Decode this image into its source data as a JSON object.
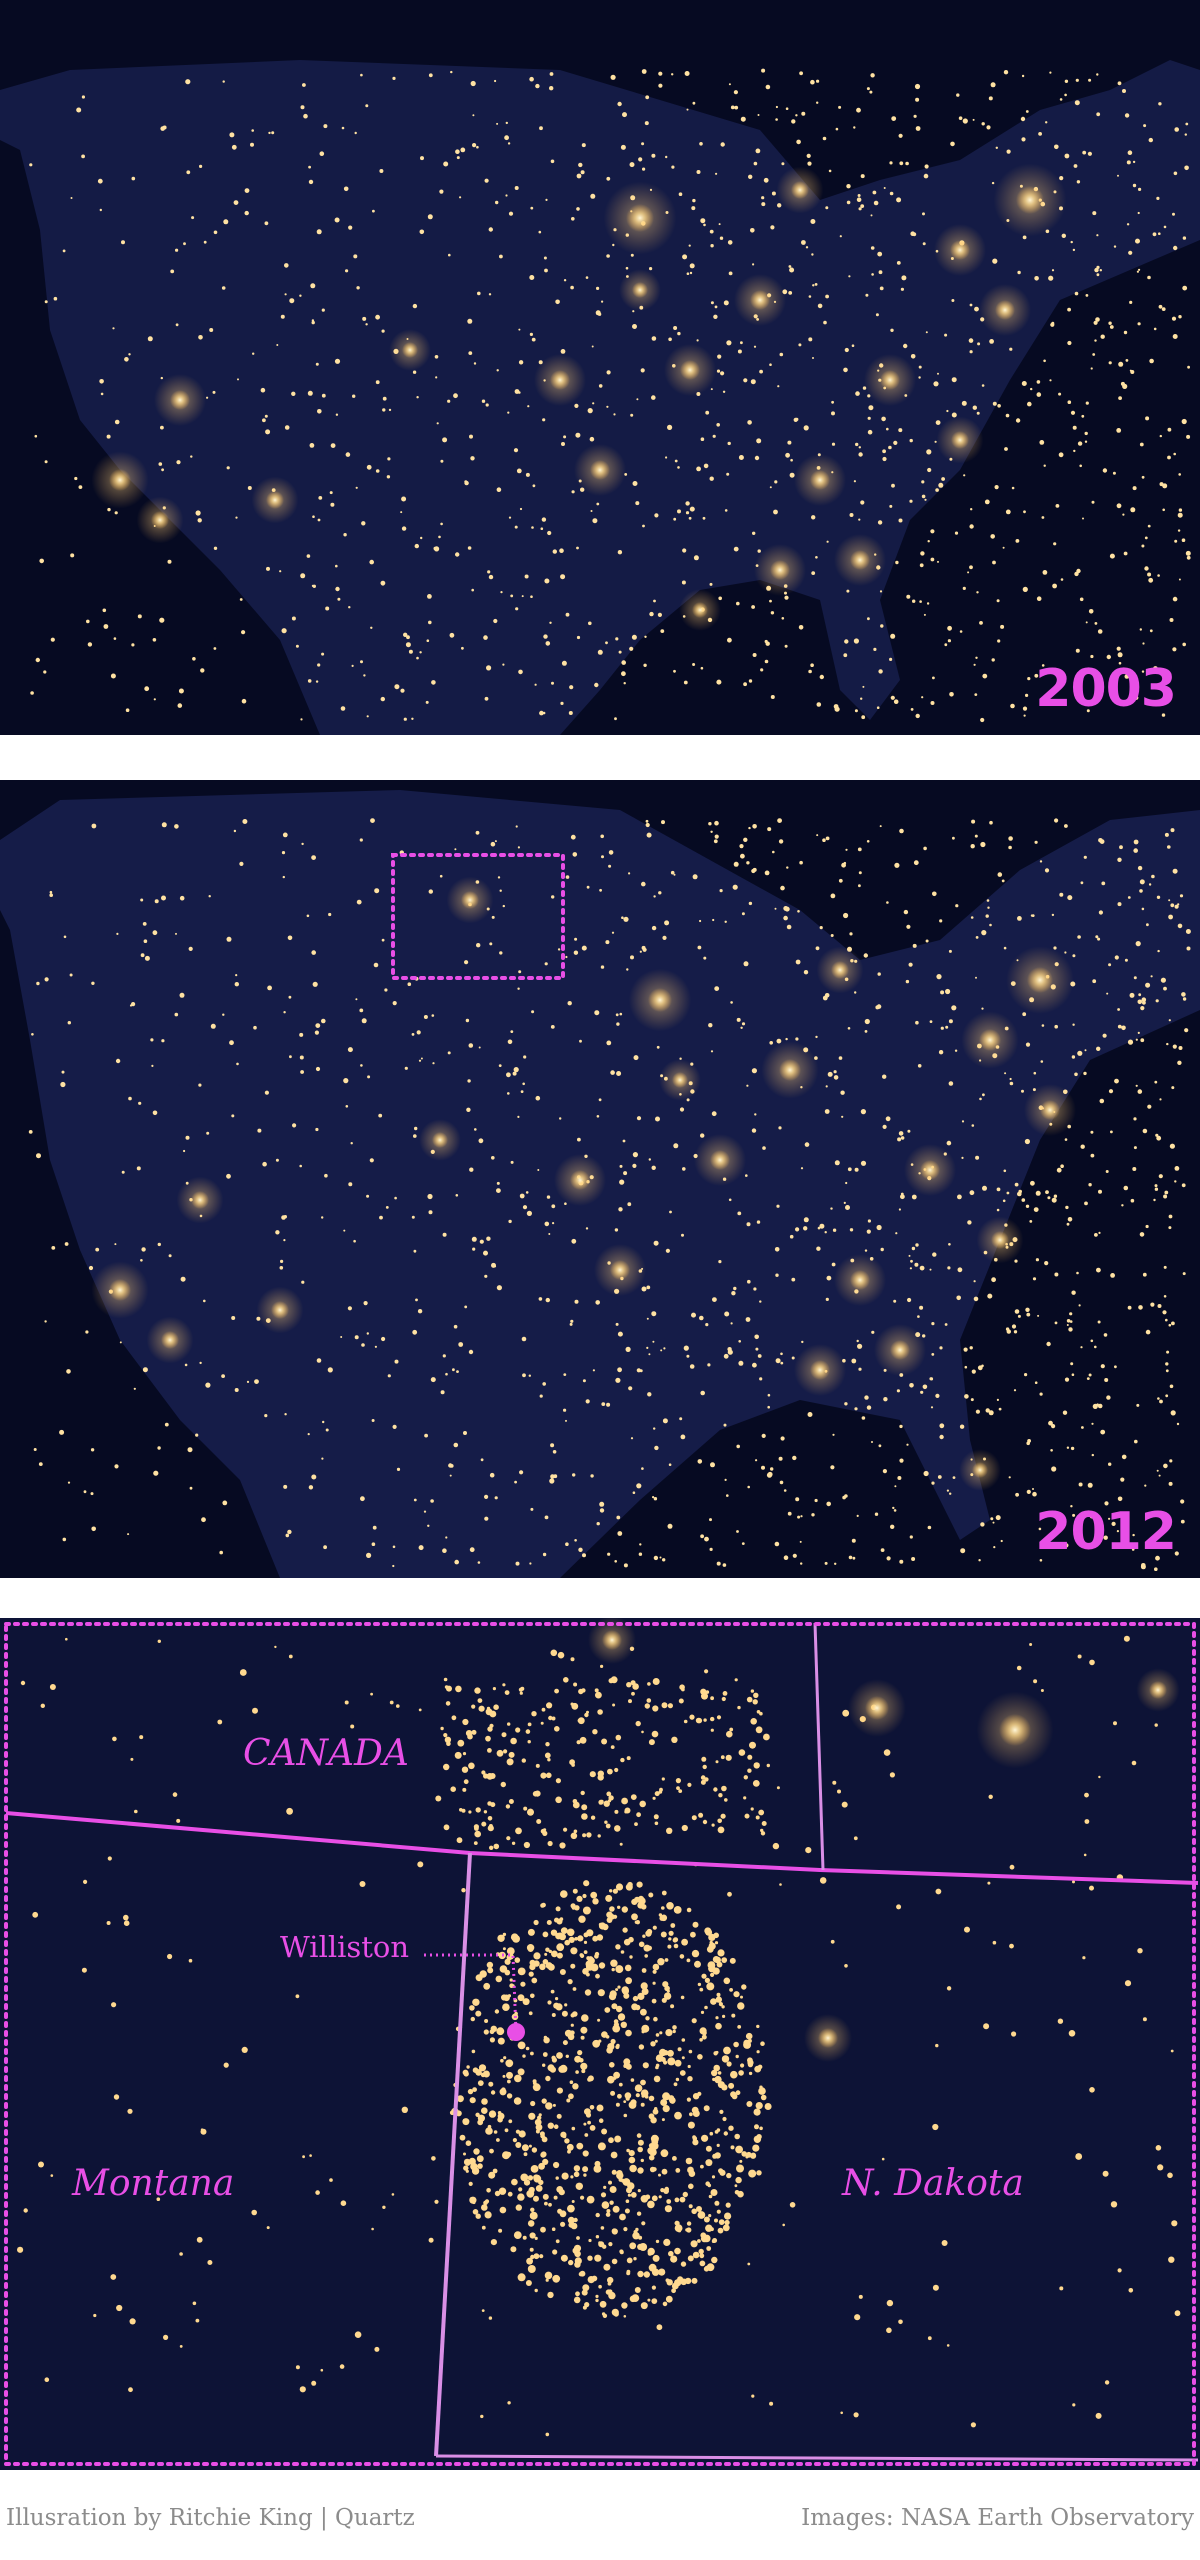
{
  "panels": {
    "top": {
      "year_label": "2003"
    },
    "middle": {
      "year_label": "2012"
    },
    "zoom": {
      "labels": {
        "canada": "CANADA",
        "montana": "Montana",
        "north_dakota": "N. Dakota",
        "williston": "Williston"
      }
    }
  },
  "credits": {
    "illustration": "Illusration by Ritchie King | Quartz",
    "images": "Images: NASA Earth Observatory"
  },
  "colors": {
    "accent": "#e84fe6",
    "background_night": "#060a22",
    "land_night": "#141b45",
    "city_light": "#ffe2a3",
    "credit_text": "#8c8c8c"
  }
}
